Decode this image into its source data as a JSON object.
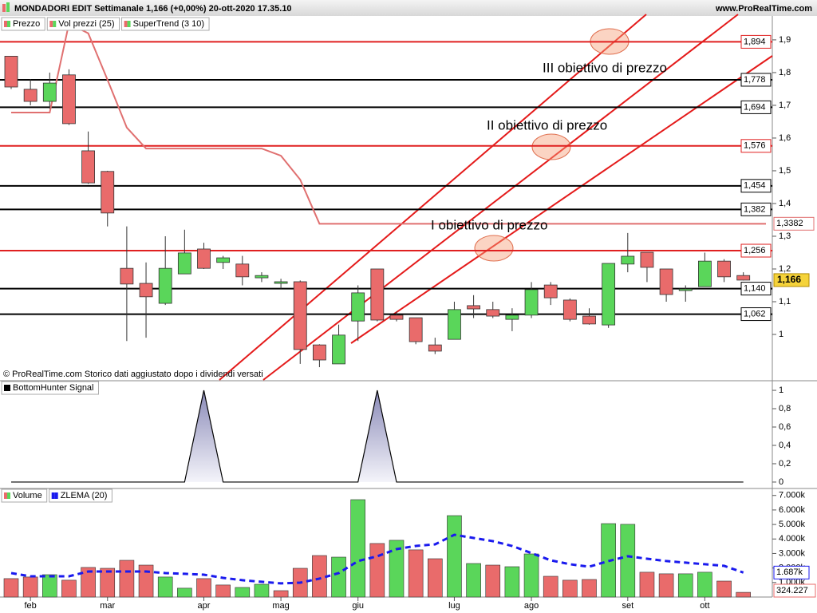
{
  "header": {
    "title": "MONDADORI EDIT Settimanale 1,166 (+0,00%) 20-ott-2020 17.35.10",
    "site": "www.ProRealTime.com"
  },
  "footer": "© ProRealTime.com  Storico dati aggiustato dopo i dividendi versati",
  "chart_data": [
    {
      "type": "candlestick",
      "name": "Prezzo",
      "up_color": "#5ad65a",
      "down_color": "#e96b6b",
      "open": [
        1.85,
        1.749,
        1.712,
        1.793,
        1.561,
        1.498,
        1.202,
        1.156,
        1.095,
        1.185,
        1.261,
        1.22,
        1.215,
        1.173,
        1.156,
        1.161,
        0.968,
        0.91,
        1.041,
        1.2,
        1.059,
        1.051,
        0.968,
        0.985,
        1.088,
        1.076,
        1.046,
        1.059,
        1.151,
        1.105,
        1.056,
        1.029,
        1.215,
        1.251,
        1.2,
        1.134,
        1.146,
        1.224,
        1.18
      ],
      "high": [
        1.85,
        1.78,
        1.8,
        1.81,
        1.62,
        1.5,
        1.33,
        1.22,
        1.3,
        1.32,
        1.28,
        1.24,
        1.24,
        1.19,
        1.17,
        1.165,
        0.97,
        1.03,
        1.15,
        1.2,
        1.07,
        1.05,
        0.99,
        1.1,
        1.12,
        1.1,
        1.08,
        1.16,
        1.16,
        1.11,
        1.08,
        1.217,
        1.31,
        1.251,
        1.2,
        1.15,
        1.25,
        1.23,
        1.19
      ],
      "low": [
        1.75,
        1.7,
        1.69,
        1.64,
        1.46,
        1.33,
        0.98,
        0.99,
        1.09,
        1.185,
        1.2,
        1.2,
        1.15,
        1.16,
        1.14,
        0.91,
        0.9,
        0.91,
        0.98,
        1.04,
        1.04,
        0.97,
        0.94,
        0.985,
        1.05,
        1.05,
        1.01,
        1.05,
        1.09,
        1.04,
        1.03,
        1.02,
        1.19,
        1.16,
        1.1,
        1.1,
        1.146,
        1.16,
        1.165
      ],
      "close": [
        1.756,
        1.712,
        1.768,
        1.644,
        1.463,
        1.371,
        1.154,
        1.115,
        1.202,
        1.249,
        1.202,
        1.234,
        1.176,
        1.18,
        1.161,
        0.954,
        0.922,
        0.998,
        1.127,
        1.044,
        1.046,
        0.978,
        0.949,
        1.076,
        1.078,
        1.056,
        1.059,
        1.137,
        1.112,
        1.046,
        1.032,
        1.217,
        1.239,
        1.205,
        1.122,
        1.139,
        1.224,
        1.176,
        1.166
      ],
      "overlays": [
        {
          "name": "Vol prezzi (25)"
        },
        {
          "name": "SuperTrend (3 10)",
          "color": "#e07070",
          "values": [
            1.678,
            1.678,
            1.678,
            1.95,
            1.92,
            1.778,
            1.632,
            1.568,
            1.568,
            1.568,
            1.568,
            1.568,
            1.568,
            1.568,
            1.546,
            1.473,
            1.3382,
            1.3382,
            1.3382,
            1.3382,
            1.3382,
            1.3382,
            1.3382,
            1.3382,
            1.3382,
            1.3382,
            1.3382,
            1.3382,
            1.3382,
            1.3382,
            1.3382,
            1.3382,
            1.3382,
            1.3382,
            1.3382,
            1.3382,
            1.3382,
            1.3382,
            1.3382
          ],
          "last_label": "1,3382"
        }
      ],
      "levels": [
        {
          "value": 1.894,
          "label": "1,894",
          "color": "#e02020"
        },
        {
          "value": 1.778,
          "label": "1,778",
          "color": "#000000"
        },
        {
          "value": 1.694,
          "label": "1,694",
          "color": "#000000"
        },
        {
          "value": 1.576,
          "label": "1,576",
          "color": "#e02020"
        },
        {
          "value": 1.454,
          "label": "1,454",
          "color": "#000000"
        },
        {
          "value": 1.382,
          "label": "1,382",
          "color": "#000000"
        },
        {
          "value": 1.256,
          "label": "1,256",
          "color": "#e02020"
        },
        {
          "value": 1.14,
          "label": "1,140",
          "color": "#000000"
        },
        {
          "value": 1.062,
          "label": "1,062",
          "color": "#000000"
        }
      ],
      "last_price": {
        "value": 1.166,
        "label": "1,166"
      },
      "annotations": [
        "III obiettivo di prezzo",
        "II obiettivo di prezzo",
        "I obiettivo di prezzo"
      ],
      "ylim": [
        0.861,
        1.973
      ],
      "yticks": [
        1,
        {
          "value": 1.1,
          "label": "1,1"
        },
        {
          "value": 1.2,
          "label": "1,2"
        },
        {
          "value": 1.3,
          "label": "1,3"
        },
        {
          "value": 1.4,
          "label": "1,4"
        },
        {
          "value": 1.5,
          "label": "1,5"
        },
        {
          "value": 1.6,
          "label": "1,6"
        },
        {
          "value": 1.7,
          "label": "1,7"
        },
        {
          "value": 1.8,
          "label": "1,8"
        },
        {
          "value": 1.9,
          "label": "1,9"
        }
      ]
    },
    {
      "type": "area",
      "name": "BottomHunter Signal",
      "color": "#000000",
      "values": [
        0,
        0,
        0,
        0,
        0,
        0,
        0,
        0,
        0,
        0,
        1,
        0,
        0,
        0,
        0,
        0,
        0,
        0,
        0,
        1,
        0,
        0,
        0,
        0,
        0,
        0,
        0,
        0,
        0,
        0,
        0,
        0,
        0,
        0,
        0,
        0,
        0,
        0,
        0
      ],
      "ylim": [
        -0.07,
        1.096
      ],
      "yticks": [
        0,
        {
          "value": 0.2,
          "label": "0,2"
        },
        {
          "value": 0.4,
          "label": "0,4"
        },
        {
          "value": 0.6,
          "label": "0,6"
        },
        {
          "value": 0.8,
          "label": "0,8"
        },
        1
      ]
    },
    {
      "type": "bar",
      "categories": [
        null,
        "feb",
        null,
        null,
        null,
        "mar",
        null,
        null,
        null,
        null,
        "apr",
        null,
        null,
        null,
        "mag",
        null,
        null,
        null,
        "giu",
        null,
        null,
        null,
        null,
        "lug",
        null,
        null,
        null,
        "ago",
        null,
        null,
        null,
        null,
        "set",
        null,
        null,
        null,
        "ott",
        null,
        null
      ],
      "series": [
        {
          "name": "Volume",
          "colors": [
            "#e96b6b",
            "#e96b6b",
            "#5ad65a",
            "#e96b6b",
            "#e96b6b",
            "#e96b6b",
            "#e96b6b",
            "#e96b6b",
            "#5ad65a",
            "#5ad65a",
            "#e96b6b",
            "#e96b6b",
            "#5ad65a",
            "#5ad65a",
            "#e96b6b",
            "#e96b6b",
            "#e96b6b",
            "#5ad65a",
            "#5ad65a",
            "#e96b6b",
            "#5ad65a",
            "#e96b6b",
            "#e96b6b",
            "#5ad65a",
            "#5ad65a",
            "#e96b6b",
            "#5ad65a",
            "#5ad65a",
            "#e96b6b",
            "#e96b6b",
            "#e96b6b",
            "#5ad65a",
            "#5ad65a",
            "#e96b6b",
            "#e96b6b",
            "#5ad65a",
            "#5ad65a",
            "#e96b6b",
            "#e96b6b"
          ],
          "values": [
            1270000,
            1380000,
            1540000,
            1160000,
            2040000,
            1980000,
            2530000,
            2200000,
            1380000,
            610000,
            1270000,
            830000,
            660000,
            880000,
            440000,
            1980000,
            2860000,
            2750000,
            6710000,
            3690000,
            3910000,
            3250000,
            2640000,
            5610000,
            2310000,
            2200000,
            2090000,
            2970000,
            1430000,
            1160000,
            1210000,
            5060000,
            5010000,
            1710000,
            1600000,
            1600000,
            1710000,
            1100000,
            324227
          ],
          "last_label": "324.227"
        },
        {
          "name": "ZLEMA (20)",
          "color": "#1a1aee",
          "values": [
            1650000,
            1430000,
            1430000,
            1430000,
            1760000,
            1760000,
            1760000,
            1760000,
            1650000,
            1600000,
            1540000,
            1320000,
            1160000,
            1050000,
            940000,
            990000,
            1270000,
            1650000,
            2480000,
            2810000,
            3300000,
            3520000,
            3630000,
            4290000,
            4070000,
            3850000,
            3520000,
            3030000,
            2530000,
            2260000,
            2090000,
            2480000,
            2810000,
            2640000,
            2480000,
            2370000,
            2260000,
            2150000,
            1687000
          ],
          "last_label": "1.687k"
        }
      ],
      "ylim": [
        0,
        7480000
      ],
      "yticks": [
        {
          "value": 1000000,
          "label": "1.000k"
        },
        {
          "value": 2000000,
          "label": "2.000k"
        },
        {
          "value": 3000000,
          "label": "3.000k"
        },
        {
          "value": 4000000,
          "label": "4.000k"
        },
        {
          "value": 5000000,
          "label": "5.000k"
        },
        {
          "value": 6000000,
          "label": "6.000k"
        },
        {
          "value": 7000000,
          "label": "7.000k"
        }
      ]
    }
  ]
}
